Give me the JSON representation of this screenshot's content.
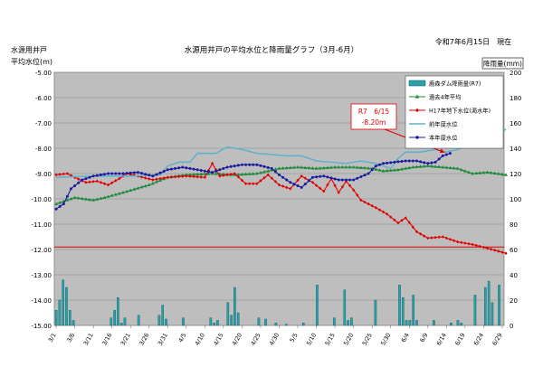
{
  "chart_data": {
    "type": "line",
    "title": "水源用井戸の平均水位と降雨量グラフ（3月-6月）",
    "date_text": "令和7年6月15日　現在",
    "ylabel_left_line1": "水源用井戸",
    "ylabel_left_line2": "平均水位(m)",
    "ylabel_right": "降雨量(mm)",
    "y_left_range": [
      -15.0,
      -5.0
    ],
    "y_right_range": [
      0,
      200
    ],
    "y_left_ticks": [
      "-5.00",
      "-6.00",
      "-7.00",
      "-8.00",
      "-9.00",
      "-10.00",
      "-11.00",
      "-12.00",
      "-13.00",
      "-14.00",
      "-15.00"
    ],
    "y_right_ticks": [
      "200",
      "180",
      "160",
      "140",
      "120",
      "100",
      "80",
      "60",
      "40",
      "20",
      "0"
    ],
    "x_ticks": [
      "3/1",
      "3/6",
      "3/11",
      "3/16",
      "3/21",
      "3/26",
      "3/31",
      "4/5",
      "4/10",
      "4/15",
      "4/20",
      "4/25",
      "4/30",
      "5/5",
      "5/10",
      "5/15",
      "5/20",
      "5/25",
      "5/30",
      "6/4",
      "6/9",
      "6/14",
      "6/19",
      "6/24",
      "6/29"
    ],
    "x_days": 121,
    "reference_line": -11.9,
    "annotation": {
      "line1": "R7　6/15",
      "line2": "-8.20m",
      "day_index": 105,
      "value": -8.2
    },
    "legend": [
      {
        "label": "鹿森ダム降雨量(R7)",
        "type": "bar"
      },
      {
        "label": "過去4年平均",
        "type": "triangle"
      },
      {
        "label": "H17年地下水位(渇水年)",
        "type": "diamond"
      },
      {
        "label": "前年度水位",
        "type": "line"
      },
      {
        "label": "本年度水位",
        "type": "dot"
      }
    ],
    "series": [
      {
        "name": "過去4年平均",
        "color": "#1f8a3a",
        "marker": "triangle",
        "keys": [
          [
            0,
            -10.2
          ],
          [
            5,
            -9.95
          ],
          [
            10,
            -10.05
          ],
          [
            13,
            -9.95
          ],
          [
            18,
            -9.75
          ],
          [
            25,
            -9.45
          ],
          [
            30,
            -9.15
          ],
          [
            35,
            -9.05
          ],
          [
            42,
            -9.0
          ],
          [
            48,
            -9.05
          ],
          [
            54,
            -9.0
          ],
          [
            60,
            -8.8
          ],
          [
            65,
            -8.75
          ],
          [
            70,
            -8.8
          ],
          [
            75,
            -8.75
          ],
          [
            80,
            -8.75
          ],
          [
            85,
            -8.8
          ],
          [
            88,
            -8.9
          ],
          [
            92,
            -8.85
          ],
          [
            96,
            -8.75
          ],
          [
            100,
            -8.7
          ],
          [
            104,
            -8.75
          ],
          [
            108,
            -8.8
          ],
          [
            112,
            -9.0
          ],
          [
            116,
            -8.95
          ],
          [
            121,
            -9.05
          ]
        ]
      },
      {
        "name": "H17年地下水位(渇水年)",
        "color": "#e00000",
        "marker": "diamond",
        "keys": [
          [
            0,
            -9.05
          ],
          [
            3,
            -9.0
          ],
          [
            5,
            -9.15
          ],
          [
            8,
            -9.35
          ],
          [
            11,
            -9.3
          ],
          [
            14,
            -9.45
          ],
          [
            17,
            -9.2
          ],
          [
            19,
            -9.0
          ],
          [
            22,
            -9.1
          ],
          [
            26,
            -9.25
          ],
          [
            30,
            -9.15
          ],
          [
            35,
            -9.1
          ],
          [
            40,
            -9.15
          ],
          [
            42,
            -8.6
          ],
          [
            44,
            -9.1
          ],
          [
            48,
            -9.0
          ],
          [
            51,
            -9.4
          ],
          [
            54,
            -9.4
          ],
          [
            57,
            -9.05
          ],
          [
            60,
            -9.45
          ],
          [
            63,
            -9.6
          ],
          [
            66,
            -9.1
          ],
          [
            69,
            -9.35
          ],
          [
            72,
            -9.7
          ],
          [
            74,
            -9.2
          ],
          [
            76,
            -9.75
          ],
          [
            78,
            -9.3
          ],
          [
            80,
            -9.65
          ],
          [
            82,
            -10.05
          ],
          [
            86,
            -10.35
          ],
          [
            89,
            -10.6
          ],
          [
            92,
            -10.95
          ],
          [
            94,
            -10.75
          ],
          [
            97,
            -11.3
          ],
          [
            100,
            -11.55
          ],
          [
            104,
            -11.5
          ],
          [
            108,
            -11.7
          ],
          [
            112,
            -11.8
          ],
          [
            116,
            -11.95
          ],
          [
            121,
            -12.15
          ]
        ]
      },
      {
        "name": "前年度水位",
        "color": "#5fb0cc",
        "marker": "none",
        "keys": [
          [
            0,
            -9.15
          ],
          [
            10,
            -9.1
          ],
          [
            20,
            -9.1
          ],
          [
            28,
            -9.05
          ],
          [
            30,
            -8.7
          ],
          [
            33,
            -8.55
          ],
          [
            36,
            -8.55
          ],
          [
            38,
            -8.2
          ],
          [
            43,
            -8.2
          ],
          [
            46,
            -7.95
          ],
          [
            50,
            -8.05
          ],
          [
            54,
            -8.2
          ],
          [
            58,
            -8.25
          ],
          [
            62,
            -8.3
          ],
          [
            66,
            -8.3
          ],
          [
            70,
            -8.5
          ],
          [
            74,
            -8.55
          ],
          [
            78,
            -8.6
          ],
          [
            82,
            -8.5
          ],
          [
            86,
            -8.6
          ],
          [
            88,
            -8.7
          ],
          [
            90,
            -8.8
          ],
          [
            92,
            -8.4
          ],
          [
            94,
            -8.15
          ],
          [
            98,
            -8.15
          ],
          [
            102,
            -8.05
          ],
          [
            105,
            -8.15
          ],
          [
            108,
            -8.05
          ],
          [
            110,
            -7.95
          ],
          [
            113,
            -7.7
          ],
          [
            116,
            -7.45
          ],
          [
            119,
            -7.45
          ],
          [
            121,
            -7.25
          ]
        ]
      },
      {
        "name": "本年度水位",
        "color": "#1a1aa0",
        "marker": "dot",
        "keys": [
          [
            0,
            -10.4
          ],
          [
            2,
            -10.2
          ],
          [
            4,
            -9.6
          ],
          [
            7,
            -9.25
          ],
          [
            10,
            -9.1
          ],
          [
            14,
            -9.0
          ],
          [
            18,
            -9.0
          ],
          [
            22,
            -8.95
          ],
          [
            26,
            -9.1
          ],
          [
            30,
            -8.85
          ],
          [
            34,
            -8.75
          ],
          [
            38,
            -8.85
          ],
          [
            42,
            -8.95
          ],
          [
            46,
            -8.75
          ],
          [
            50,
            -8.65
          ],
          [
            54,
            -8.65
          ],
          [
            58,
            -8.8
          ],
          [
            60,
            -9.05
          ],
          [
            63,
            -9.35
          ],
          [
            66,
            -9.55
          ],
          [
            69,
            -9.15
          ],
          [
            72,
            -9.1
          ],
          [
            76,
            -9.25
          ],
          [
            80,
            -9.25
          ],
          [
            84,
            -9.0
          ],
          [
            86,
            -8.7
          ],
          [
            88,
            -8.6
          ],
          [
            91,
            -8.55
          ],
          [
            94,
            -8.5
          ],
          [
            97,
            -8.5
          ],
          [
            100,
            -8.6
          ],
          [
            102,
            -8.55
          ],
          [
            104,
            -8.3
          ],
          [
            106,
            -8.2
          ]
        ]
      }
    ],
    "rain": [
      [
        0,
        12
      ],
      [
        1,
        20
      ],
      [
        2,
        36
      ],
      [
        3,
        30
      ],
      [
        4,
        12
      ],
      [
        5,
        4
      ],
      [
        16,
        6
      ],
      [
        17,
        12
      ],
      [
        18,
        22
      ],
      [
        19,
        2
      ],
      [
        20,
        6
      ],
      [
        24,
        8
      ],
      [
        30,
        8
      ],
      [
        31,
        16
      ],
      [
        32,
        5
      ],
      [
        37,
        6
      ],
      [
        45,
        6
      ],
      [
        46,
        2
      ],
      [
        47,
        4
      ],
      [
        50,
        18
      ],
      [
        51,
        8
      ],
      [
        52,
        30
      ],
      [
        53,
        10
      ],
      [
        59,
        6
      ],
      [
        61,
        5
      ],
      [
        64,
        2
      ],
      [
        67,
        1
      ],
      [
        72,
        2
      ],
      [
        76,
        32
      ],
      [
        81,
        6
      ],
      [
        84,
        28
      ],
      [
        85,
        4
      ],
      [
        86,
        6
      ],
      [
        93,
        20
      ],
      [
        100,
        32
      ],
      [
        101,
        22
      ],
      [
        102,
        4
      ],
      [
        103,
        4
      ],
      [
        104,
        24
      ],
      [
        105,
        4
      ],
      [
        110,
        4
      ],
      [
        115,
        2
      ],
      [
        117,
        4
      ],
      [
        118,
        2
      ],
      [
        122,
        24
      ],
      [
        125,
        30
      ],
      [
        126,
        35
      ],
      [
        127,
        18
      ],
      [
        129,
        32
      ]
    ]
  }
}
